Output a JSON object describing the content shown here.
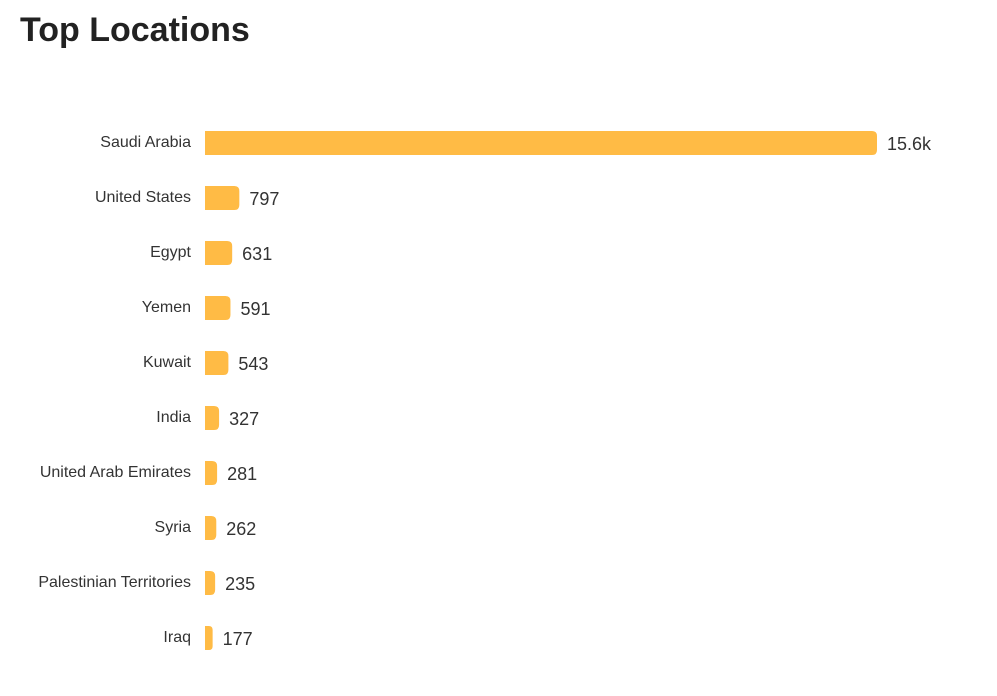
{
  "chart_data": {
    "type": "bar",
    "orientation": "horizontal",
    "title": "Top Locations",
    "categories": [
      "Saudi Arabia",
      "United States",
      "Egypt",
      "Yemen",
      "Kuwait",
      "India",
      "United Arab Emirates",
      "Syria",
      "Palestinian Territories",
      "Iraq"
    ],
    "values": [
      15600,
      797,
      631,
      591,
      543,
      327,
      281,
      262,
      235,
      177
    ],
    "value_labels": [
      "15.6k",
      "797",
      "631",
      "591",
      "543",
      "327",
      "281",
      "262",
      "235",
      "177"
    ],
    "color": "#ffbb45"
  }
}
